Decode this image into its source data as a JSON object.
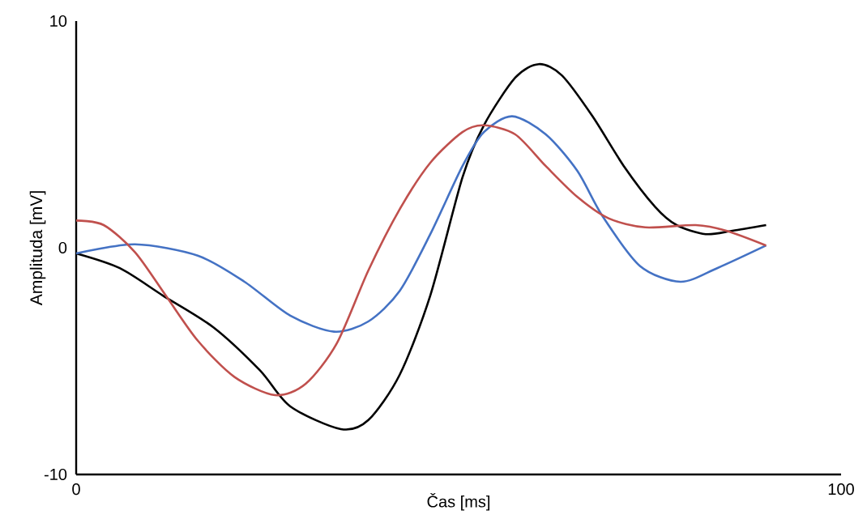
{
  "chart_data": {
    "type": "line",
    "xlabel": "Čas [ms]",
    "ylabel": "Amplituda [mV]",
    "xlim": [
      0,
      100
    ],
    "ylim": [
      -10,
      10
    ],
    "xticks": [
      0,
      100
    ],
    "yticks": [
      -10,
      0,
      10
    ],
    "series": [
      {
        "color": "#000000",
        "x": [
          0,
          5.7,
          11.3,
          17.9,
          24.0,
          28.0,
          34.6,
          38.2,
          42.3,
          46.3,
          50.5,
          53.3,
          57.4,
          60.5,
          63.5,
          67.5,
          71.6,
          75.7,
          78.5,
          82.3,
          85.8,
          90.2
        ],
        "values": [
          -0.25,
          -0.9,
          -2.1,
          -3.5,
          -5.4,
          -7.0,
          -8.0,
          -7.6,
          -5.6,
          -2.1,
          3.1,
          5.4,
          7.5,
          8.1,
          7.6,
          5.8,
          3.6,
          1.8,
          1.0,
          0.6,
          0.75,
          1.0
        ]
      },
      {
        "color": "#4472c4",
        "x": [
          0,
          7.7,
          15.9,
          22.0,
          28.0,
          33.7,
          38.2,
          42.3,
          46.3,
          50.5,
          53.3,
          57.0,
          61.4,
          65.5,
          68.8,
          73.7,
          79.0,
          83.8,
          90.2
        ],
        "values": [
          -0.25,
          0.15,
          -0.35,
          -1.5,
          -3.0,
          -3.7,
          -3.25,
          -1.9,
          0.6,
          3.6,
          5.1,
          5.8,
          5.0,
          3.4,
          1.4,
          -0.8,
          -1.5,
          -0.9,
          0.1
        ]
      },
      {
        "color": "#c0504d",
        "x": [
          0,
          3.6,
          7.7,
          11.7,
          15.9,
          20.7,
          26.0,
          30.0,
          34.1,
          38.2,
          42.3,
          46.3,
          50.5,
          53.3,
          57.4,
          61.4,
          65.5,
          69.6,
          74.4,
          81.0,
          85.0,
          90.2
        ],
        "values": [
          1.2,
          1.0,
          -0.2,
          -2.1,
          -4.1,
          -5.7,
          -6.5,
          -6.0,
          -4.2,
          -1.0,
          1.7,
          3.75,
          5.1,
          5.4,
          5.0,
          3.6,
          2.25,
          1.3,
          0.9,
          1.0,
          0.75,
          0.1
        ]
      }
    ]
  }
}
